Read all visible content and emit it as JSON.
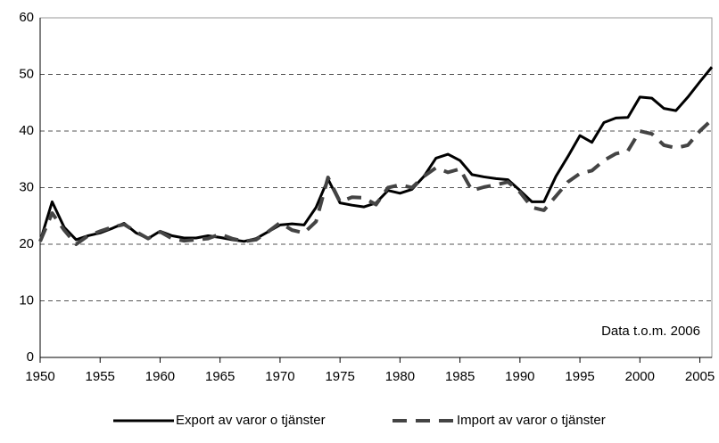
{
  "chart_data": {
    "type": "line",
    "annotation": "Data t.o.m. 2006",
    "x": [
      1950,
      1951,
      1952,
      1953,
      1954,
      1955,
      1956,
      1957,
      1958,
      1959,
      1960,
      1961,
      1962,
      1963,
      1964,
      1965,
      1966,
      1967,
      1968,
      1969,
      1970,
      1971,
      1972,
      1973,
      1974,
      1975,
      1976,
      1977,
      1978,
      1979,
      1980,
      1981,
      1982,
      1983,
      1984,
      1985,
      1986,
      1987,
      1988,
      1989,
      1990,
      1991,
      1992,
      1993,
      1994,
      1995,
      1996,
      1997,
      1998,
      1999,
      2000,
      2001,
      2002,
      2003,
      2004,
      2005,
      2006
    ],
    "series": [
      {
        "name": "Export av varor o tjänster",
        "color": "#000000",
        "dash": false,
        "values": [
          20.5,
          27.5,
          23,
          20.8,
          21.5,
          22,
          22.8,
          23.7,
          22,
          21,
          22.3,
          21.5,
          21.1,
          21.1,
          21.5,
          21.2,
          20.8,
          20.5,
          21,
          22.2,
          23.4,
          23.6,
          23.4,
          26.5,
          31.5,
          27.3,
          26.9,
          26.6,
          27.3,
          29.5,
          29,
          29.7,
          32,
          35.2,
          35.9,
          34.8,
          32.3,
          31.9,
          31.6,
          31.4,
          29.5,
          27.5,
          27.5,
          32,
          35.5,
          39.2,
          38,
          41.5,
          42.3,
          42.4,
          46,
          45.8,
          44,
          43.6,
          46,
          48.7,
          51.3
        ]
      },
      {
        "name": "Import av varor o tjänster",
        "color": "#444444",
        "dash": true,
        "values": [
          20.5,
          25.5,
          22.5,
          20,
          21.5,
          22.3,
          23,
          23.5,
          22.2,
          21,
          22.2,
          21,
          20.6,
          20.8,
          21,
          21.8,
          21,
          20.5,
          20.8,
          22.2,
          23.8,
          22.5,
          22,
          24,
          31.8,
          27.5,
          28.3,
          28.2,
          27,
          30,
          30.5,
          30,
          32,
          33.5,
          32.7,
          33.3,
          29.5,
          30.1,
          30.5,
          31,
          29.2,
          26.5,
          26,
          28.5,
          31,
          32.5,
          33,
          34.8,
          36,
          36.5,
          40,
          39.5,
          37.5,
          37,
          37.5,
          40,
          42
        ]
      }
    ],
    "xlim": [
      1950,
      2006
    ],
    "xticks": [
      1950,
      1955,
      1960,
      1965,
      1970,
      1975,
      1980,
      1985,
      1990,
      1995,
      2000,
      2005
    ],
    "ylim": [
      0,
      60
    ],
    "yticks": [
      0,
      10,
      20,
      30,
      40,
      50,
      60
    ],
    "grid": true,
    "legend": "bottom"
  }
}
